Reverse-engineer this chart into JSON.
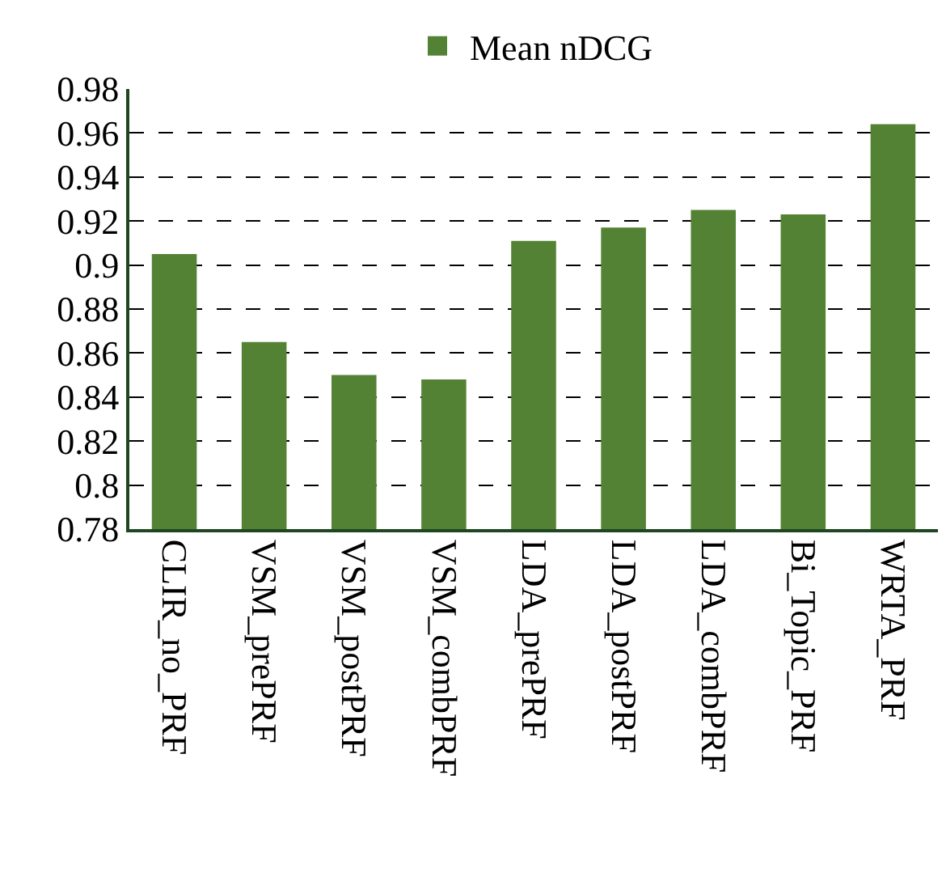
{
  "chart_data": {
    "type": "bar",
    "categories": [
      "CLIR_no_PRF",
      "VSM_prePRF",
      "VSM_postPRF",
      "VSM_combPRF",
      "LDA_prePRF",
      "LDA_postPRF",
      "LDA_combPRF",
      "Bi_Topic_PRF",
      "WRTA_PRF"
    ],
    "series": [
      {
        "name": "Mean nDCG",
        "color": "#548235",
        "values": [
          0.905,
          0.865,
          0.85,
          0.848,
          0.911,
          0.917,
          0.925,
          0.923,
          0.964
        ]
      }
    ],
    "ylim": [
      0.78,
      0.98
    ],
    "yticks": [
      0.78,
      0.8,
      0.82,
      0.84,
      0.86,
      0.88,
      0.9,
      0.92,
      0.94,
      0.96,
      0.98
    ],
    "grid": "y",
    "legend": "top"
  }
}
